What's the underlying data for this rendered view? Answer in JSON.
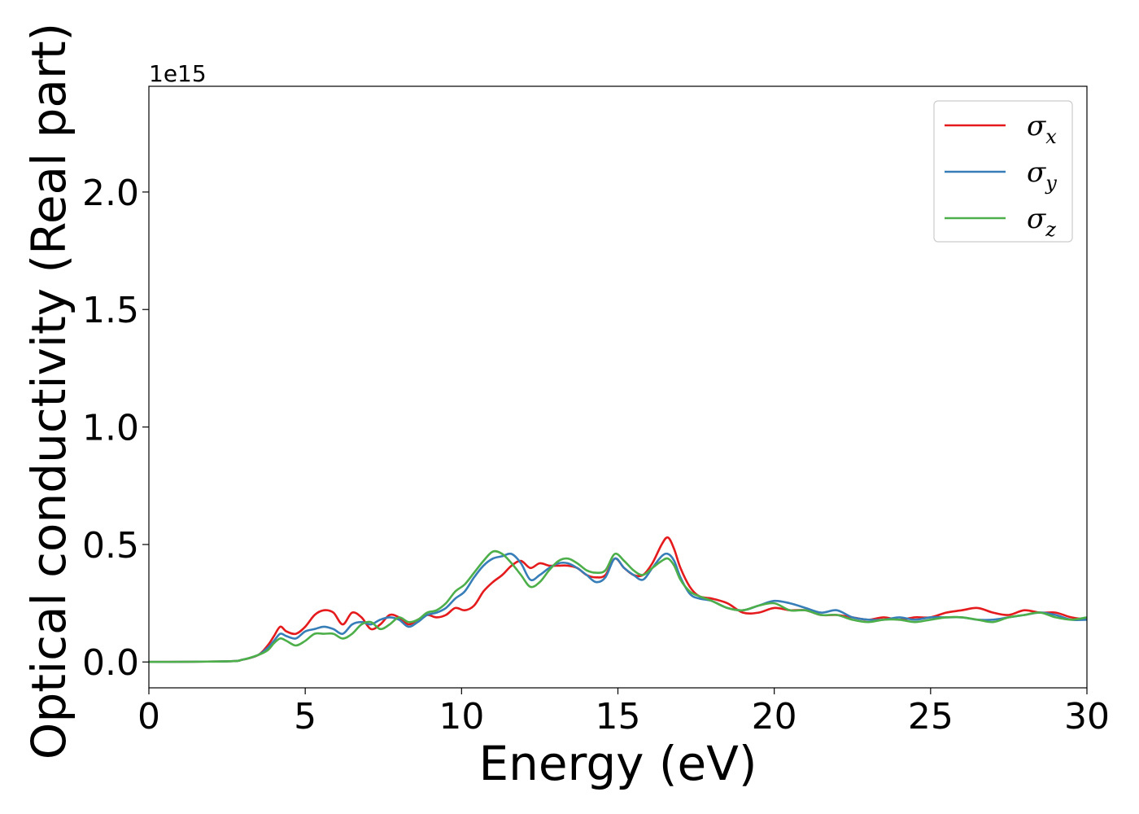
{
  "chart_data": {
    "type": "line",
    "xlabel": "Energy (eV)",
    "ylabel": "Optical conductivity (Real part)",
    "offset_text": "1e15",
    "xlim": [
      0,
      30
    ],
    "ylim": [
      -0.11,
      2.45
    ],
    "xticks": [
      0,
      5,
      10,
      15,
      20,
      25,
      30
    ],
    "xtick_labels": [
      "0",
      "5",
      "10",
      "15",
      "20",
      "25",
      "30"
    ],
    "yticks": [
      0.0,
      0.5,
      1.0,
      1.5,
      2.0
    ],
    "ytick_labels": [
      "0.0",
      "0.5",
      "1.0",
      "1.5",
      "2.0"
    ],
    "grid": false,
    "legend_position": "top-right",
    "series": [
      {
        "name": "σ",
        "subscript": "x",
        "color": "#e41a1c",
        "x": [
          0,
          2.5,
          3.0,
          3.5,
          3.8,
          4.0,
          4.2,
          4.4,
          4.7,
          5.0,
          5.3,
          5.6,
          5.9,
          6.2,
          6.5,
          6.8,
          7.1,
          7.4,
          7.7,
          8.0,
          8.3,
          8.6,
          8.9,
          9.2,
          9.5,
          9.8,
          10.1,
          10.4,
          10.7,
          11.0,
          11.3,
          11.6,
          11.9,
          12.2,
          12.5,
          12.8,
          13.1,
          13.4,
          13.7,
          14.0,
          14.3,
          14.6,
          14.9,
          15.2,
          15.5,
          15.8,
          16.1,
          16.4,
          16.6,
          16.8,
          17.0,
          17.3,
          17.6,
          18.0,
          18.5,
          19.0,
          19.5,
          20.0,
          20.5,
          21.0,
          21.5,
          22.0,
          22.5,
          23.0,
          23.5,
          24.0,
          24.5,
          25.0,
          25.5,
          26.0,
          26.5,
          27.0,
          27.5,
          28.0,
          28.5,
          29.0,
          29.5,
          30.0
        ],
        "y": [
          0.0,
          0.003,
          0.01,
          0.03,
          0.07,
          0.11,
          0.15,
          0.13,
          0.12,
          0.15,
          0.2,
          0.22,
          0.21,
          0.16,
          0.21,
          0.19,
          0.14,
          0.16,
          0.2,
          0.19,
          0.16,
          0.18,
          0.2,
          0.19,
          0.2,
          0.23,
          0.22,
          0.24,
          0.3,
          0.34,
          0.37,
          0.41,
          0.43,
          0.4,
          0.42,
          0.41,
          0.41,
          0.41,
          0.4,
          0.37,
          0.36,
          0.37,
          0.44,
          0.4,
          0.37,
          0.37,
          0.42,
          0.5,
          0.53,
          0.48,
          0.4,
          0.32,
          0.28,
          0.27,
          0.25,
          0.21,
          0.21,
          0.23,
          0.22,
          0.22,
          0.2,
          0.2,
          0.19,
          0.18,
          0.19,
          0.18,
          0.19,
          0.19,
          0.21,
          0.22,
          0.23,
          0.21,
          0.2,
          0.22,
          0.21,
          0.21,
          0.19,
          0.18
        ]
      },
      {
        "name": "σ",
        "subscript": "y",
        "color": "#377eb8",
        "x": [
          0,
          2.5,
          3.0,
          3.5,
          3.8,
          4.0,
          4.2,
          4.4,
          4.7,
          5.0,
          5.3,
          5.6,
          5.9,
          6.2,
          6.5,
          6.8,
          7.1,
          7.4,
          7.7,
          8.0,
          8.3,
          8.6,
          8.9,
          9.2,
          9.5,
          9.8,
          10.1,
          10.4,
          10.7,
          11.0,
          11.3,
          11.6,
          11.9,
          12.2,
          12.5,
          12.8,
          13.1,
          13.4,
          13.7,
          14.0,
          14.3,
          14.6,
          14.9,
          15.2,
          15.5,
          15.8,
          16.1,
          16.4,
          16.6,
          16.8,
          17.0,
          17.3,
          17.6,
          18.0,
          18.5,
          19.0,
          19.5,
          20.0,
          20.5,
          21.0,
          21.5,
          22.0,
          22.5,
          23.0,
          23.5,
          24.0,
          24.5,
          25.0,
          25.5,
          26.0,
          26.5,
          27.0,
          27.5,
          28.0,
          28.5,
          29.0,
          29.5,
          30.0
        ],
        "y": [
          0.0,
          0.003,
          0.01,
          0.03,
          0.06,
          0.09,
          0.12,
          0.11,
          0.1,
          0.13,
          0.14,
          0.15,
          0.14,
          0.12,
          0.16,
          0.17,
          0.16,
          0.18,
          0.19,
          0.18,
          0.15,
          0.17,
          0.2,
          0.21,
          0.23,
          0.27,
          0.3,
          0.36,
          0.41,
          0.44,
          0.45,
          0.46,
          0.42,
          0.35,
          0.37,
          0.4,
          0.42,
          0.42,
          0.4,
          0.37,
          0.34,
          0.36,
          0.44,
          0.4,
          0.37,
          0.35,
          0.4,
          0.45,
          0.46,
          0.43,
          0.36,
          0.29,
          0.27,
          0.26,
          0.23,
          0.22,
          0.24,
          0.26,
          0.25,
          0.23,
          0.21,
          0.22,
          0.19,
          0.18,
          0.18,
          0.19,
          0.18,
          0.19,
          0.19,
          0.19,
          0.18,
          0.18,
          0.19,
          0.2,
          0.21,
          0.2,
          0.18,
          0.18
        ]
      },
      {
        "name": "σ",
        "subscript": "z",
        "color": "#4daf4a",
        "x": [
          0,
          2.5,
          3.0,
          3.5,
          3.8,
          4.0,
          4.2,
          4.4,
          4.7,
          5.0,
          5.3,
          5.6,
          5.9,
          6.2,
          6.5,
          6.8,
          7.1,
          7.4,
          7.7,
          8.0,
          8.3,
          8.6,
          8.9,
          9.2,
          9.5,
          9.8,
          10.1,
          10.4,
          10.7,
          11.0,
          11.3,
          11.6,
          11.9,
          12.2,
          12.5,
          12.8,
          13.1,
          13.4,
          13.7,
          14.0,
          14.3,
          14.6,
          14.9,
          15.2,
          15.5,
          15.8,
          16.1,
          16.4,
          16.6,
          16.8,
          17.0,
          17.3,
          17.6,
          18.0,
          18.5,
          19.0,
          19.5,
          20.0,
          20.5,
          21.0,
          21.5,
          22.0,
          22.5,
          23.0,
          23.5,
          24.0,
          24.5,
          25.0,
          25.5,
          26.0,
          26.5,
          27.0,
          27.5,
          28.0,
          28.5,
          29.0,
          29.5,
          30.0
        ],
        "y": [
          0.0,
          0.003,
          0.01,
          0.03,
          0.05,
          0.08,
          0.1,
          0.09,
          0.07,
          0.09,
          0.12,
          0.12,
          0.12,
          0.1,
          0.12,
          0.16,
          0.17,
          0.14,
          0.16,
          0.19,
          0.17,
          0.18,
          0.21,
          0.22,
          0.25,
          0.3,
          0.33,
          0.38,
          0.43,
          0.47,
          0.46,
          0.42,
          0.37,
          0.32,
          0.34,
          0.39,
          0.43,
          0.44,
          0.42,
          0.39,
          0.38,
          0.39,
          0.46,
          0.43,
          0.39,
          0.37,
          0.4,
          0.43,
          0.44,
          0.41,
          0.35,
          0.3,
          0.28,
          0.26,
          0.23,
          0.22,
          0.24,
          0.25,
          0.22,
          0.22,
          0.2,
          0.2,
          0.18,
          0.17,
          0.18,
          0.18,
          0.17,
          0.18,
          0.19,
          0.19,
          0.18,
          0.17,
          0.19,
          0.2,
          0.21,
          0.19,
          0.18,
          0.19
        ]
      }
    ]
  }
}
